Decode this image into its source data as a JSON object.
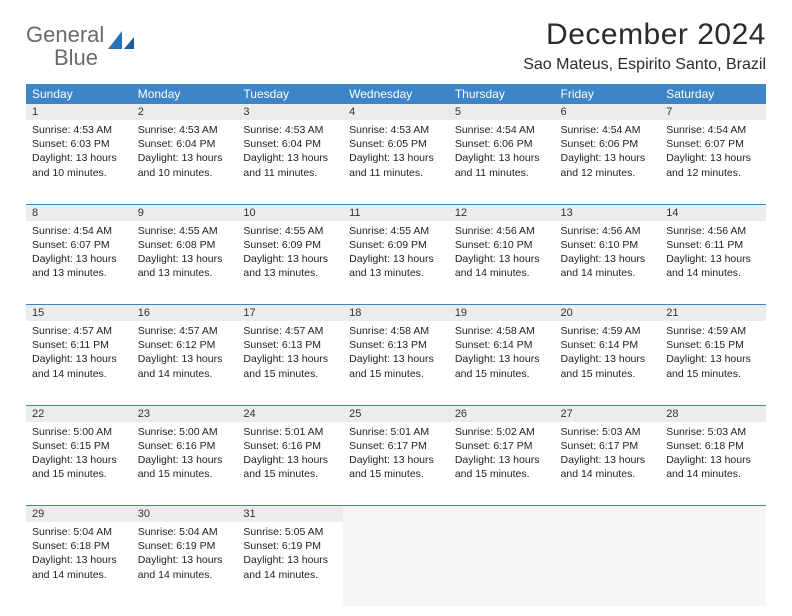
{
  "logo": {
    "text_gray": "General",
    "text_blue": "Blue"
  },
  "title": "December 2024",
  "location": "Sao Mateus, Espirito Santo, Brazil",
  "colors": {
    "header_bg": "#3d85c6",
    "header_fg": "#ffffff",
    "dayrow_bg": "#ececec",
    "empty_bg": "#f6f6f6",
    "rule": "#3d85c6"
  },
  "weekdays": [
    "Sunday",
    "Monday",
    "Tuesday",
    "Wednesday",
    "Thursday",
    "Friday",
    "Saturday"
  ],
  "weeks": [
    [
      {
        "n": "1",
        "sr": "4:53 AM",
        "ss": "6:03 PM",
        "dl": "13 hours and 10 minutes."
      },
      {
        "n": "2",
        "sr": "4:53 AM",
        "ss": "6:04 PM",
        "dl": "13 hours and 10 minutes."
      },
      {
        "n": "3",
        "sr": "4:53 AM",
        "ss": "6:04 PM",
        "dl": "13 hours and 11 minutes."
      },
      {
        "n": "4",
        "sr": "4:53 AM",
        "ss": "6:05 PM",
        "dl": "13 hours and 11 minutes."
      },
      {
        "n": "5",
        "sr": "4:54 AM",
        "ss": "6:06 PM",
        "dl": "13 hours and 11 minutes."
      },
      {
        "n": "6",
        "sr": "4:54 AM",
        "ss": "6:06 PM",
        "dl": "13 hours and 12 minutes."
      },
      {
        "n": "7",
        "sr": "4:54 AM",
        "ss": "6:07 PM",
        "dl": "13 hours and 12 minutes."
      }
    ],
    [
      {
        "n": "8",
        "sr": "4:54 AM",
        "ss": "6:07 PM",
        "dl": "13 hours and 13 minutes."
      },
      {
        "n": "9",
        "sr": "4:55 AM",
        "ss": "6:08 PM",
        "dl": "13 hours and 13 minutes."
      },
      {
        "n": "10",
        "sr": "4:55 AM",
        "ss": "6:09 PM",
        "dl": "13 hours and 13 minutes."
      },
      {
        "n": "11",
        "sr": "4:55 AM",
        "ss": "6:09 PM",
        "dl": "13 hours and 13 minutes."
      },
      {
        "n": "12",
        "sr": "4:56 AM",
        "ss": "6:10 PM",
        "dl": "13 hours and 14 minutes."
      },
      {
        "n": "13",
        "sr": "4:56 AM",
        "ss": "6:10 PM",
        "dl": "13 hours and 14 minutes."
      },
      {
        "n": "14",
        "sr": "4:56 AM",
        "ss": "6:11 PM",
        "dl": "13 hours and 14 minutes."
      }
    ],
    [
      {
        "n": "15",
        "sr": "4:57 AM",
        "ss": "6:11 PM",
        "dl": "13 hours and 14 minutes."
      },
      {
        "n": "16",
        "sr": "4:57 AM",
        "ss": "6:12 PM",
        "dl": "13 hours and 14 minutes."
      },
      {
        "n": "17",
        "sr": "4:57 AM",
        "ss": "6:13 PM",
        "dl": "13 hours and 15 minutes."
      },
      {
        "n": "18",
        "sr": "4:58 AM",
        "ss": "6:13 PM",
        "dl": "13 hours and 15 minutes."
      },
      {
        "n": "19",
        "sr": "4:58 AM",
        "ss": "6:14 PM",
        "dl": "13 hours and 15 minutes."
      },
      {
        "n": "20",
        "sr": "4:59 AM",
        "ss": "6:14 PM",
        "dl": "13 hours and 15 minutes."
      },
      {
        "n": "21",
        "sr": "4:59 AM",
        "ss": "6:15 PM",
        "dl": "13 hours and 15 minutes."
      }
    ],
    [
      {
        "n": "22",
        "sr": "5:00 AM",
        "ss": "6:15 PM",
        "dl": "13 hours and 15 minutes."
      },
      {
        "n": "23",
        "sr": "5:00 AM",
        "ss": "6:16 PM",
        "dl": "13 hours and 15 minutes."
      },
      {
        "n": "24",
        "sr": "5:01 AM",
        "ss": "6:16 PM",
        "dl": "13 hours and 15 minutes."
      },
      {
        "n": "25",
        "sr": "5:01 AM",
        "ss": "6:17 PM",
        "dl": "13 hours and 15 minutes."
      },
      {
        "n": "26",
        "sr": "5:02 AM",
        "ss": "6:17 PM",
        "dl": "13 hours and 15 minutes."
      },
      {
        "n": "27",
        "sr": "5:03 AM",
        "ss": "6:17 PM",
        "dl": "13 hours and 14 minutes."
      },
      {
        "n": "28",
        "sr": "5:03 AM",
        "ss": "6:18 PM",
        "dl": "13 hours and 14 minutes."
      }
    ],
    [
      {
        "n": "29",
        "sr": "5:04 AM",
        "ss": "6:18 PM",
        "dl": "13 hours and 14 minutes."
      },
      {
        "n": "30",
        "sr": "5:04 AM",
        "ss": "6:19 PM",
        "dl": "13 hours and 14 minutes."
      },
      {
        "n": "31",
        "sr": "5:05 AM",
        "ss": "6:19 PM",
        "dl": "13 hours and 14 minutes."
      },
      null,
      null,
      null,
      null
    ]
  ],
  "labels": {
    "sunrise": "Sunrise:",
    "sunset": "Sunset:",
    "daylight": "Daylight:"
  }
}
